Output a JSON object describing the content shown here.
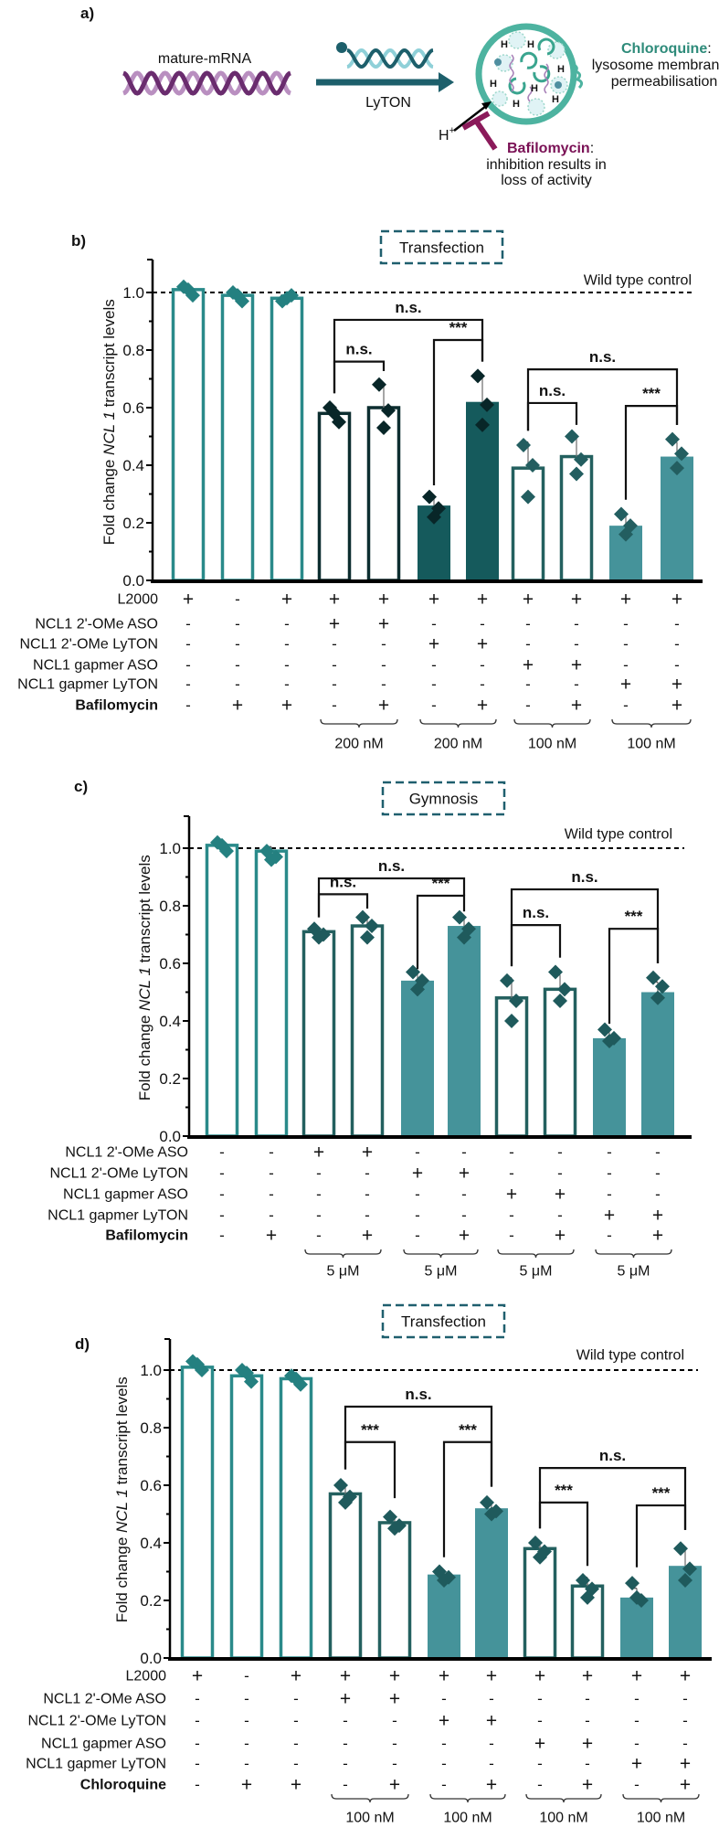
{
  "diagram": {
    "panel": "a)",
    "substrate": "mature-mRNA",
    "arrow_label": "LyTON",
    "proton": "H",
    "proton_charge": "+",
    "chloroquine": {
      "name": "Chloroquine",
      "colon": ":",
      "line1": "lysosome membrane",
      "line2": "permeabilisation",
      "color": "#2e8b7a"
    },
    "bafilomycin": {
      "name": "Bafilomycin",
      "colon": ":",
      "line1": "inhibition results in",
      "line2": "loss of activity",
      "color": "#7a1155"
    }
  },
  "chart_data": [
    {
      "type": "bar",
      "panel": "b)",
      "method": "Transfection",
      "ylabel": {
        "pre": "Fold change ",
        "italic": "NCL 1",
        "post": " transcript levels"
      },
      "yticks": [
        "0.0",
        "0.2",
        "0.4",
        "0.6",
        "0.8",
        "1.0"
      ],
      "ylim": [
        0,
        1.12
      ],
      "reference": {
        "value": 1.0,
        "label": "Wild type control"
      },
      "values": [
        1.01,
        0.99,
        0.98,
        0.58,
        0.6,
        0.26,
        0.62,
        0.39,
        0.43,
        0.19,
        0.43
      ],
      "points": [
        [
          1.02,
          0.99,
          1.01
        ],
        [
          1.0,
          0.97,
          0.99
        ],
        [
          0.97,
          0.99,
          0.98
        ],
        [
          0.6,
          0.55,
          0.58
        ],
        [
          0.68,
          0.59,
          0.53
        ],
        [
          0.29,
          0.25,
          0.22
        ],
        [
          0.71,
          0.61,
          0.54
        ],
        [
          0.47,
          0.4,
          0.29
        ],
        [
          0.5,
          0.42,
          0.37
        ],
        [
          0.23,
          0.19,
          0.16
        ],
        [
          0.49,
          0.44,
          0.39
        ]
      ],
      "bar_styles": [
        "outline",
        "outline",
        "outline",
        "outline",
        "outline",
        "filled",
        "filled",
        "outline",
        "outline",
        "filled",
        "filled"
      ],
      "bar_colors": [
        "#2a8a8a",
        "#2a8a8a",
        "#2a8a8a",
        "#0d2e30",
        "#0d2e30",
        "#155a5c",
        "#155a5c",
        "#23605f",
        "#23605f",
        "#45939a",
        "#45939a"
      ],
      "point_colors": [
        "#248080",
        "#248080",
        "#248080",
        "#082628",
        "#082628",
        "#082628",
        "#082628",
        "#235e60",
        "#235e60",
        "#235e60",
        "#235e60"
      ],
      "conditions": [
        {
          "label": "L2000",
          "marks": [
            "+",
            "-",
            "+",
            "+",
            "+",
            "+",
            "+",
            "+",
            "+",
            "+",
            "+"
          ]
        },
        {
          "label": "NCL1 2'-OMe ASO",
          "marks": [
            "-",
            "-",
            "-",
            "+",
            "+",
            "-",
            "-",
            "-",
            "-",
            "-",
            "-"
          ]
        },
        {
          "label": "NCL1 2'-OMe LyTON",
          "marks": [
            "-",
            "-",
            "-",
            "-",
            "-",
            "+",
            "+",
            "-",
            "-",
            "-",
            "-"
          ]
        },
        {
          "label": "NCL1 gapmer ASO",
          "marks": [
            "-",
            "-",
            "-",
            "-",
            "-",
            "-",
            "-",
            "+",
            "+",
            "-",
            "-"
          ]
        },
        {
          "label": "NCL1 gapmer LyTON",
          "marks": [
            "-",
            "-",
            "-",
            "-",
            "-",
            "-",
            "-",
            "-",
            "-",
            "+",
            "+"
          ]
        },
        {
          "label": "Bafilomycin",
          "marks": [
            "-",
            "+",
            "+",
            "-",
            "+",
            "-",
            "+",
            "-",
            "+",
            "-",
            "+"
          ],
          "color": "#7a1155"
        }
      ],
      "concentrations": [
        {
          "columns": [
            3,
            4
          ],
          "label": "200 nM"
        },
        {
          "columns": [
            5,
            6
          ],
          "label": "200 nM"
        },
        {
          "columns": [
            7,
            8
          ],
          "label": "100 nM"
        },
        {
          "columns": [
            9,
            10
          ],
          "label": "100 nM"
        }
      ],
      "significance": [
        {
          "from": 3,
          "to": 6,
          "label": "n.s."
        },
        {
          "from": 3,
          "to": 4,
          "label": "n.s."
        },
        {
          "from": 5,
          "to": 6,
          "label": "***"
        },
        {
          "from": 7,
          "to": 10,
          "label": "n.s."
        },
        {
          "from": 7,
          "to": 8,
          "label": "n.s."
        },
        {
          "from": 9,
          "to": 10,
          "label": "***"
        }
      ]
    },
    {
      "type": "bar",
      "panel": "c)",
      "method": "Gymnosis",
      "ylabel": {
        "pre": "Fold change ",
        "italic": "NCL 1",
        "post": " transcript levels"
      },
      "yticks": [
        "0.0",
        "0.2",
        "0.4",
        "0.6",
        "0.8",
        "1.0"
      ],
      "ylim": [
        0,
        1.12
      ],
      "reference": {
        "value": 1.0,
        "label": "Wild type control"
      },
      "values": [
        1.01,
        0.99,
        0.71,
        0.73,
        0.54,
        0.73,
        0.48,
        0.51,
        0.34,
        0.5
      ],
      "points": [
        [
          1.02,
          0.99,
          1.01
        ],
        [
          0.99,
          0.97,
          0.96
        ],
        [
          0.72,
          0.7,
          0.69
        ],
        [
          0.76,
          0.73,
          0.69
        ],
        [
          0.57,
          0.54,
          0.51
        ],
        [
          0.76,
          0.72,
          0.69
        ],
        [
          0.54,
          0.47,
          0.4
        ],
        [
          0.57,
          0.51,
          0.47
        ],
        [
          0.37,
          0.34,
          0.33
        ],
        [
          0.55,
          0.52,
          0.48
        ]
      ],
      "bar_styles": [
        "outline",
        "outline",
        "outline",
        "outline",
        "filled",
        "filled",
        "outline",
        "outline",
        "filled",
        "filled"
      ],
      "bar_colors": [
        "#2a8a8a",
        "#2a8a8a",
        "#23605f",
        "#23605f",
        "#45939a",
        "#45939a",
        "#23605f",
        "#23605f",
        "#45939a",
        "#45939a"
      ],
      "point_colors": [
        "#248080",
        "#248080",
        "#1f5a5c",
        "#1f5a5c",
        "#1f5a5c",
        "#1f5a5c",
        "#1f5a5c",
        "#1f5a5c",
        "#1f5a5c",
        "#1f5a5c"
      ],
      "conditions": [
        {
          "label": "NCL1 2'-OMe ASO",
          "marks": [
            "-",
            "-",
            "+",
            "+",
            "-",
            "-",
            "-",
            "-",
            "-",
            "-"
          ]
        },
        {
          "label": "NCL1 2'-OMe LyTON",
          "marks": [
            "-",
            "-",
            "-",
            "-",
            "+",
            "+",
            "-",
            "-",
            "-",
            "-"
          ]
        },
        {
          "label": "NCL1 gapmer ASO",
          "marks": [
            "-",
            "-",
            "-",
            "-",
            "-",
            "-",
            "+",
            "+",
            "-",
            "-"
          ]
        },
        {
          "label": "NCL1 gapmer LyTON",
          "marks": [
            "-",
            "-",
            "-",
            "-",
            "-",
            "-",
            "-",
            "-",
            "+",
            "+"
          ]
        },
        {
          "label": "Bafilomycin",
          "marks": [
            "-",
            "+",
            "-",
            "+",
            "-",
            "+",
            "-",
            "+",
            "-",
            "+"
          ],
          "color": "#7a1155"
        }
      ],
      "concentrations": [
        {
          "columns": [
            2,
            3
          ],
          "label": "5 μM"
        },
        {
          "columns": [
            4,
            5
          ],
          "label": "5 μM"
        },
        {
          "columns": [
            6,
            7
          ],
          "label": "5 μM"
        },
        {
          "columns": [
            8,
            9
          ],
          "label": "5 μM"
        }
      ],
      "significance": [
        {
          "from": 2,
          "to": 5,
          "label": "n.s."
        },
        {
          "from": 2,
          "to": 3,
          "label": "n.s."
        },
        {
          "from": 4,
          "to": 5,
          "label": "***"
        },
        {
          "from": 6,
          "to": 9,
          "label": "n.s."
        },
        {
          "from": 6,
          "to": 7,
          "label": "n.s."
        },
        {
          "from": 8,
          "to": 9,
          "label": "***"
        }
      ]
    },
    {
      "type": "bar",
      "panel": "d)",
      "method": "Transfection",
      "ylabel": {
        "pre": "Fold change ",
        "italic": "NCL 1",
        "post": " transcript levels"
      },
      "yticks": [
        "0.0",
        "0.2",
        "0.4",
        "0.6",
        "0.8",
        "1.0"
      ],
      "ylim": [
        0,
        1.12
      ],
      "reference": {
        "value": 1.0,
        "label": "Wild type control"
      },
      "values": [
        1.01,
        0.98,
        0.97,
        0.57,
        0.47,
        0.29,
        0.52,
        0.38,
        0.25,
        0.21,
        0.32
      ],
      "points": [
        [
          1.03,
          1.0,
          1.02
        ],
        [
          1.0,
          0.96,
          0.99
        ],
        [
          0.98,
          0.95,
          0.97
        ],
        [
          0.6,
          0.56,
          0.54
        ],
        [
          0.49,
          0.46,
          0.45
        ],
        [
          0.3,
          0.28,
          0.27
        ],
        [
          0.54,
          0.51,
          0.5
        ],
        [
          0.4,
          0.37,
          0.35
        ],
        [
          0.27,
          0.24,
          0.21
        ],
        [
          0.26,
          0.2,
          0.21
        ],
        [
          0.38,
          0.31,
          0.27
        ]
      ],
      "bar_styles": [
        "outline",
        "outline",
        "outline",
        "outline",
        "outline",
        "filled",
        "filled",
        "outline",
        "outline",
        "filled",
        "filled"
      ],
      "bar_colors": [
        "#2a8a8a",
        "#2a8a8a",
        "#2a8a8a",
        "#23605f",
        "#23605f",
        "#45939a",
        "#45939a",
        "#23605f",
        "#23605f",
        "#45939a",
        "#45939a"
      ],
      "point_colors": [
        "#248080",
        "#248080",
        "#248080",
        "#1f5a5c",
        "#1f5a5c",
        "#1f5a5c",
        "#1f5a5c",
        "#1f5a5c",
        "#1f5a5c",
        "#1f5a5c",
        "#1f5a5c"
      ],
      "conditions": [
        {
          "label": "L2000",
          "marks": [
            "+",
            "-",
            "+",
            "+",
            "+",
            "+",
            "+",
            "+",
            "+",
            "+",
            "+"
          ]
        },
        {
          "label": "NCL1 2'-OMe ASO",
          "marks": [
            "-",
            "-",
            "-",
            "+",
            "+",
            "-",
            "-",
            "-",
            "-",
            "-",
            "-"
          ]
        },
        {
          "label": "NCL1 2'-OMe LyTON",
          "marks": [
            "-",
            "-",
            "-",
            "-",
            "-",
            "+",
            "+",
            "-",
            "-",
            "-",
            "-"
          ]
        },
        {
          "label": "NCL1 gapmer ASO",
          "marks": [
            "-",
            "-",
            "-",
            "-",
            "-",
            "-",
            "-",
            "+",
            "+",
            "-",
            "-"
          ]
        },
        {
          "label": "NCL1 gapmer LyTON",
          "marks": [
            "-",
            "-",
            "-",
            "-",
            "-",
            "-",
            "-",
            "-",
            "-",
            "+",
            "+"
          ]
        },
        {
          "label": "Chloroquine",
          "marks": [
            "-",
            "+",
            "+",
            "-",
            "+",
            "-",
            "+",
            "-",
            "+",
            "-",
            "+"
          ],
          "color": "#2e8b7a"
        }
      ],
      "concentrations": [
        {
          "columns": [
            3,
            4
          ],
          "label": "100 nM"
        },
        {
          "columns": [
            5,
            6
          ],
          "label": "100 nM"
        },
        {
          "columns": [
            7,
            8
          ],
          "label": "100 nM"
        },
        {
          "columns": [
            9,
            10
          ],
          "label": "100 nM"
        }
      ],
      "significance": [
        {
          "from": 3,
          "to": 6,
          "label": "n.s."
        },
        {
          "from": 3,
          "to": 4,
          "label": "***"
        },
        {
          "from": 5,
          "to": 6,
          "label": "***"
        },
        {
          "from": 7,
          "to": 10,
          "label": "n.s."
        },
        {
          "from": 7,
          "to": 8,
          "label": "***"
        },
        {
          "from": 9,
          "to": 10,
          "label": "***"
        }
      ]
    }
  ]
}
